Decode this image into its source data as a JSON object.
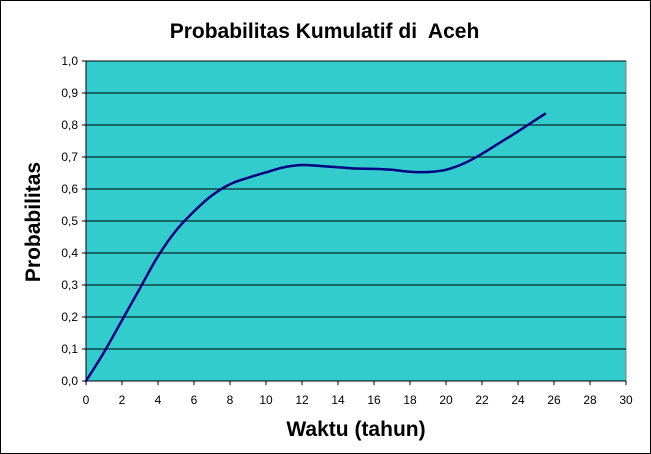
{
  "chart_data": {
    "type": "line",
    "title": "Probabilitas Kumulatif di  Aceh",
    "xlabel": "Waktu (tahun)",
    "ylabel": "Probabilitas",
    "xlim": [
      0,
      30
    ],
    "ylim": [
      0,
      1
    ],
    "x_ticks": [
      "0",
      "2",
      "4",
      "6",
      "8",
      "10",
      "12",
      "14",
      "16",
      "18",
      "20",
      "22",
      "24",
      "26",
      "28",
      "30"
    ],
    "y_ticks": [
      "0,0",
      "0,1",
      "0,2",
      "0,3",
      "0,4",
      "0,5",
      "0,6",
      "0,7",
      "0,8",
      "0,9",
      "1,0"
    ],
    "grid": "horizontal",
    "series": [
      {
        "color": "#000080",
        "x": [
          0,
          1,
          2,
          3,
          4,
          5,
          6,
          7,
          8,
          9,
          10,
          11,
          12,
          13,
          14,
          15,
          16,
          17,
          18,
          19,
          20,
          21,
          22,
          23,
          24,
          25.5
        ],
        "y": [
          0.0,
          0.09,
          0.19,
          0.29,
          0.39,
          0.47,
          0.53,
          0.58,
          0.615,
          0.635,
          0.652,
          0.668,
          0.675,
          0.672,
          0.668,
          0.664,
          0.663,
          0.66,
          0.654,
          0.653,
          0.66,
          0.68,
          0.71,
          0.745,
          0.78,
          0.835
        ]
      }
    ]
  },
  "colors": {
    "plot_background": "#33CCCC",
    "line": "#000080",
    "gridline": "#000000"
  }
}
